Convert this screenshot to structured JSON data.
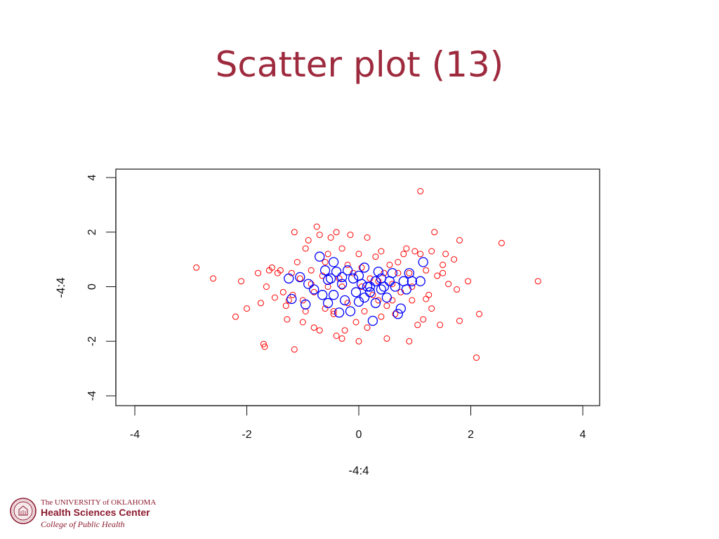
{
  "slide": {
    "title": "Scatter plot (13)"
  },
  "logo": {
    "line1": "The UNIVERSITY of OKLAHOMA",
    "line2": "Health Sciences Center",
    "line3": "College of Public Health",
    "color": "#8c1b2f"
  },
  "chart_data": {
    "type": "scatter",
    "title": "",
    "xlabel": "-4:4",
    "ylabel": "-4:4",
    "xlim": [
      -4,
      4
    ],
    "ylim": [
      -4,
      4
    ],
    "x_ticks": [
      "-4",
      "-2",
      "0",
      "2",
      "4"
    ],
    "y_ticks": [
      "-4",
      "-2",
      "0",
      "2",
      "4"
    ],
    "grid": false,
    "marker": "open-circle",
    "series": [
      {
        "color": "#ff0000",
        "marker_size": "small",
        "points": [
          [
            -2.9,
            0.7
          ],
          [
            -2.6,
            0.3
          ],
          [
            -2.2,
            -1.1
          ],
          [
            -2.1,
            0.2
          ],
          [
            -2.0,
            -0.8
          ],
          [
            -1.8,
            0.5
          ],
          [
            -1.75,
            -0.6
          ],
          [
            -1.7,
            -2.1
          ],
          [
            -1.68,
            -2.2
          ],
          [
            -1.65,
            0.0
          ],
          [
            -1.6,
            0.6
          ],
          [
            -1.55,
            0.7
          ],
          [
            -1.5,
            -0.4
          ],
          [
            -1.45,
            0.5
          ],
          [
            -1.4,
            0.6
          ],
          [
            -1.35,
            -0.2
          ],
          [
            -1.3,
            -0.7
          ],
          [
            -1.28,
            -1.2
          ],
          [
            -1.2,
            0.5
          ],
          [
            -1.18,
            -0.3
          ],
          [
            -1.15,
            2.0
          ],
          [
            -1.15,
            -2.3
          ],
          [
            -1.1,
            0.9
          ],
          [
            -1.05,
            0.3
          ],
          [
            -1.0,
            -0.5
          ],
          [
            -1.0,
            -1.3
          ],
          [
            -0.95,
            1.4
          ],
          [
            -0.9,
            1.7
          ],
          [
            -0.85,
            0.6
          ],
          [
            -0.8,
            -0.2
          ],
          [
            -0.8,
            -1.5
          ],
          [
            -0.75,
            2.2
          ],
          [
            -0.7,
            1.9
          ],
          [
            -0.7,
            -1.6
          ],
          [
            -0.65,
            0.4
          ],
          [
            -0.6,
            -0.8
          ],
          [
            -0.55,
            1.2
          ],
          [
            -0.55,
            0.0
          ],
          [
            -0.5,
            1.8
          ],
          [
            -0.45,
            -1.0
          ],
          [
            -0.4,
            2.0
          ],
          [
            -0.4,
            -1.8
          ],
          [
            -0.35,
            0.3
          ],
          [
            -0.3,
            1.4
          ],
          [
            -0.3,
            -1.9
          ],
          [
            -0.25,
            -1.6
          ],
          [
            -0.2,
            0.8
          ],
          [
            -0.2,
            -0.6
          ],
          [
            -0.15,
            1.9
          ],
          [
            -0.1,
            0.5
          ],
          [
            -0.05,
            -1.3
          ],
          [
            0.0,
            1.2
          ],
          [
            0.0,
            -2.0
          ],
          [
            0.05,
            0.7
          ],
          [
            0.1,
            -0.9
          ],
          [
            0.15,
            1.8
          ],
          [
            0.2,
            0.3
          ],
          [
            0.25,
            -0.3
          ],
          [
            0.3,
            1.1
          ],
          [
            0.35,
            -0.5
          ],
          [
            0.4,
            1.3
          ],
          [
            0.45,
            0.5
          ],
          [
            0.5,
            -0.7
          ],
          [
            0.5,
            -1.9
          ],
          [
            0.55,
            0.8
          ],
          [
            0.6,
            0.1
          ],
          [
            0.65,
            -1.0
          ],
          [
            0.7,
            0.9
          ],
          [
            0.75,
            -0.2
          ],
          [
            0.8,
            1.2
          ],
          [
            0.85,
            1.4
          ],
          [
            0.9,
            -2.0
          ],
          [
            0.9,
            0.5
          ],
          [
            0.95,
            -0.5
          ],
          [
            1.0,
            1.3
          ],
          [
            1.05,
            -1.4
          ],
          [
            1.1,
            3.5
          ],
          [
            1.1,
            1.2
          ],
          [
            1.15,
            -1.2
          ],
          [
            1.2,
            0.6
          ],
          [
            1.25,
            -0.3
          ],
          [
            1.3,
            1.3
          ],
          [
            1.3,
            -0.8
          ],
          [
            1.35,
            2.0
          ],
          [
            1.4,
            0.4
          ],
          [
            1.45,
            -1.4
          ],
          [
            1.5,
            0.8
          ],
          [
            1.55,
            1.2
          ],
          [
            1.6,
            0.1
          ],
          [
            1.7,
            1.0
          ],
          [
            1.75,
            -0.1
          ],
          [
            1.8,
            1.7
          ],
          [
            1.8,
            -1.25
          ],
          [
            1.95,
            0.2
          ],
          [
            2.1,
            -2.6
          ],
          [
            2.15,
            -1.0
          ],
          [
            2.55,
            1.6
          ],
          [
            3.2,
            0.2
          ],
          [
            -1.25,
            -0.5
          ],
          [
            -0.95,
            -0.9
          ],
          [
            -0.6,
            0.9
          ],
          [
            -0.3,
            0.0
          ],
          [
            0.05,
            0.0
          ],
          [
            0.35,
            0.2
          ],
          [
            0.6,
            -0.5
          ],
          [
            0.95,
            0.0
          ],
          [
            1.2,
            -0.45
          ],
          [
            1.5,
            0.5
          ],
          [
            -0.85,
            0.1
          ],
          [
            0.15,
            -1.5
          ],
          [
            0.4,
            -1.1
          ],
          [
            -0.45,
            -0.9
          ],
          [
            0.7,
            0.5
          ]
        ]
      },
      {
        "color": "#0000ff",
        "marker_size": "large",
        "points": [
          [
            -1.25,
            0.3
          ],
          [
            -1.2,
            -0.45
          ],
          [
            -1.05,
            0.35
          ],
          [
            -0.9,
            0.1
          ],
          [
            -0.8,
            -0.1
          ],
          [
            -0.7,
            1.1
          ],
          [
            -0.65,
            -0.3
          ],
          [
            -0.6,
            0.6
          ],
          [
            -0.55,
            -0.6
          ],
          [
            -0.5,
            0.3
          ],
          [
            -0.45,
            0.9
          ],
          [
            -0.45,
            -0.3
          ],
          [
            -0.4,
            0.55
          ],
          [
            -0.35,
            -0.95
          ],
          [
            -0.3,
            0.1
          ],
          [
            -0.25,
            -0.5
          ],
          [
            -0.2,
            0.6
          ],
          [
            -0.15,
            -0.9
          ],
          [
            -0.1,
            0.3
          ],
          [
            -0.05,
            -0.2
          ],
          [
            0.0,
            0.4
          ],
          [
            0.0,
            -0.55
          ],
          [
            0.05,
            0.1
          ],
          [
            0.1,
            0.7
          ],
          [
            0.1,
            -0.4
          ],
          [
            0.15,
            0.0
          ],
          [
            0.2,
            -0.2
          ],
          [
            0.25,
            -1.25
          ],
          [
            0.3,
            0.2
          ],
          [
            0.35,
            0.55
          ],
          [
            0.4,
            -0.1
          ],
          [
            0.4,
            0.3
          ],
          [
            0.45,
            0.0
          ],
          [
            0.5,
            -0.4
          ],
          [
            0.55,
            0.2
          ],
          [
            0.6,
            0.5
          ],
          [
            0.7,
            -1.0
          ],
          [
            0.75,
            -0.8
          ],
          [
            0.8,
            0.2
          ],
          [
            0.85,
            -0.1
          ],
          [
            0.9,
            0.5
          ],
          [
            0.95,
            0.2
          ],
          [
            1.1,
            0.2
          ],
          [
            1.15,
            0.9
          ],
          [
            -0.95,
            -0.65
          ],
          [
            -0.55,
            0.25
          ],
          [
            0.2,
            0.0
          ],
          [
            0.65,
            0.0
          ],
          [
            -0.3,
            0.35
          ],
          [
            0.3,
            -0.6
          ]
        ]
      }
    ]
  }
}
